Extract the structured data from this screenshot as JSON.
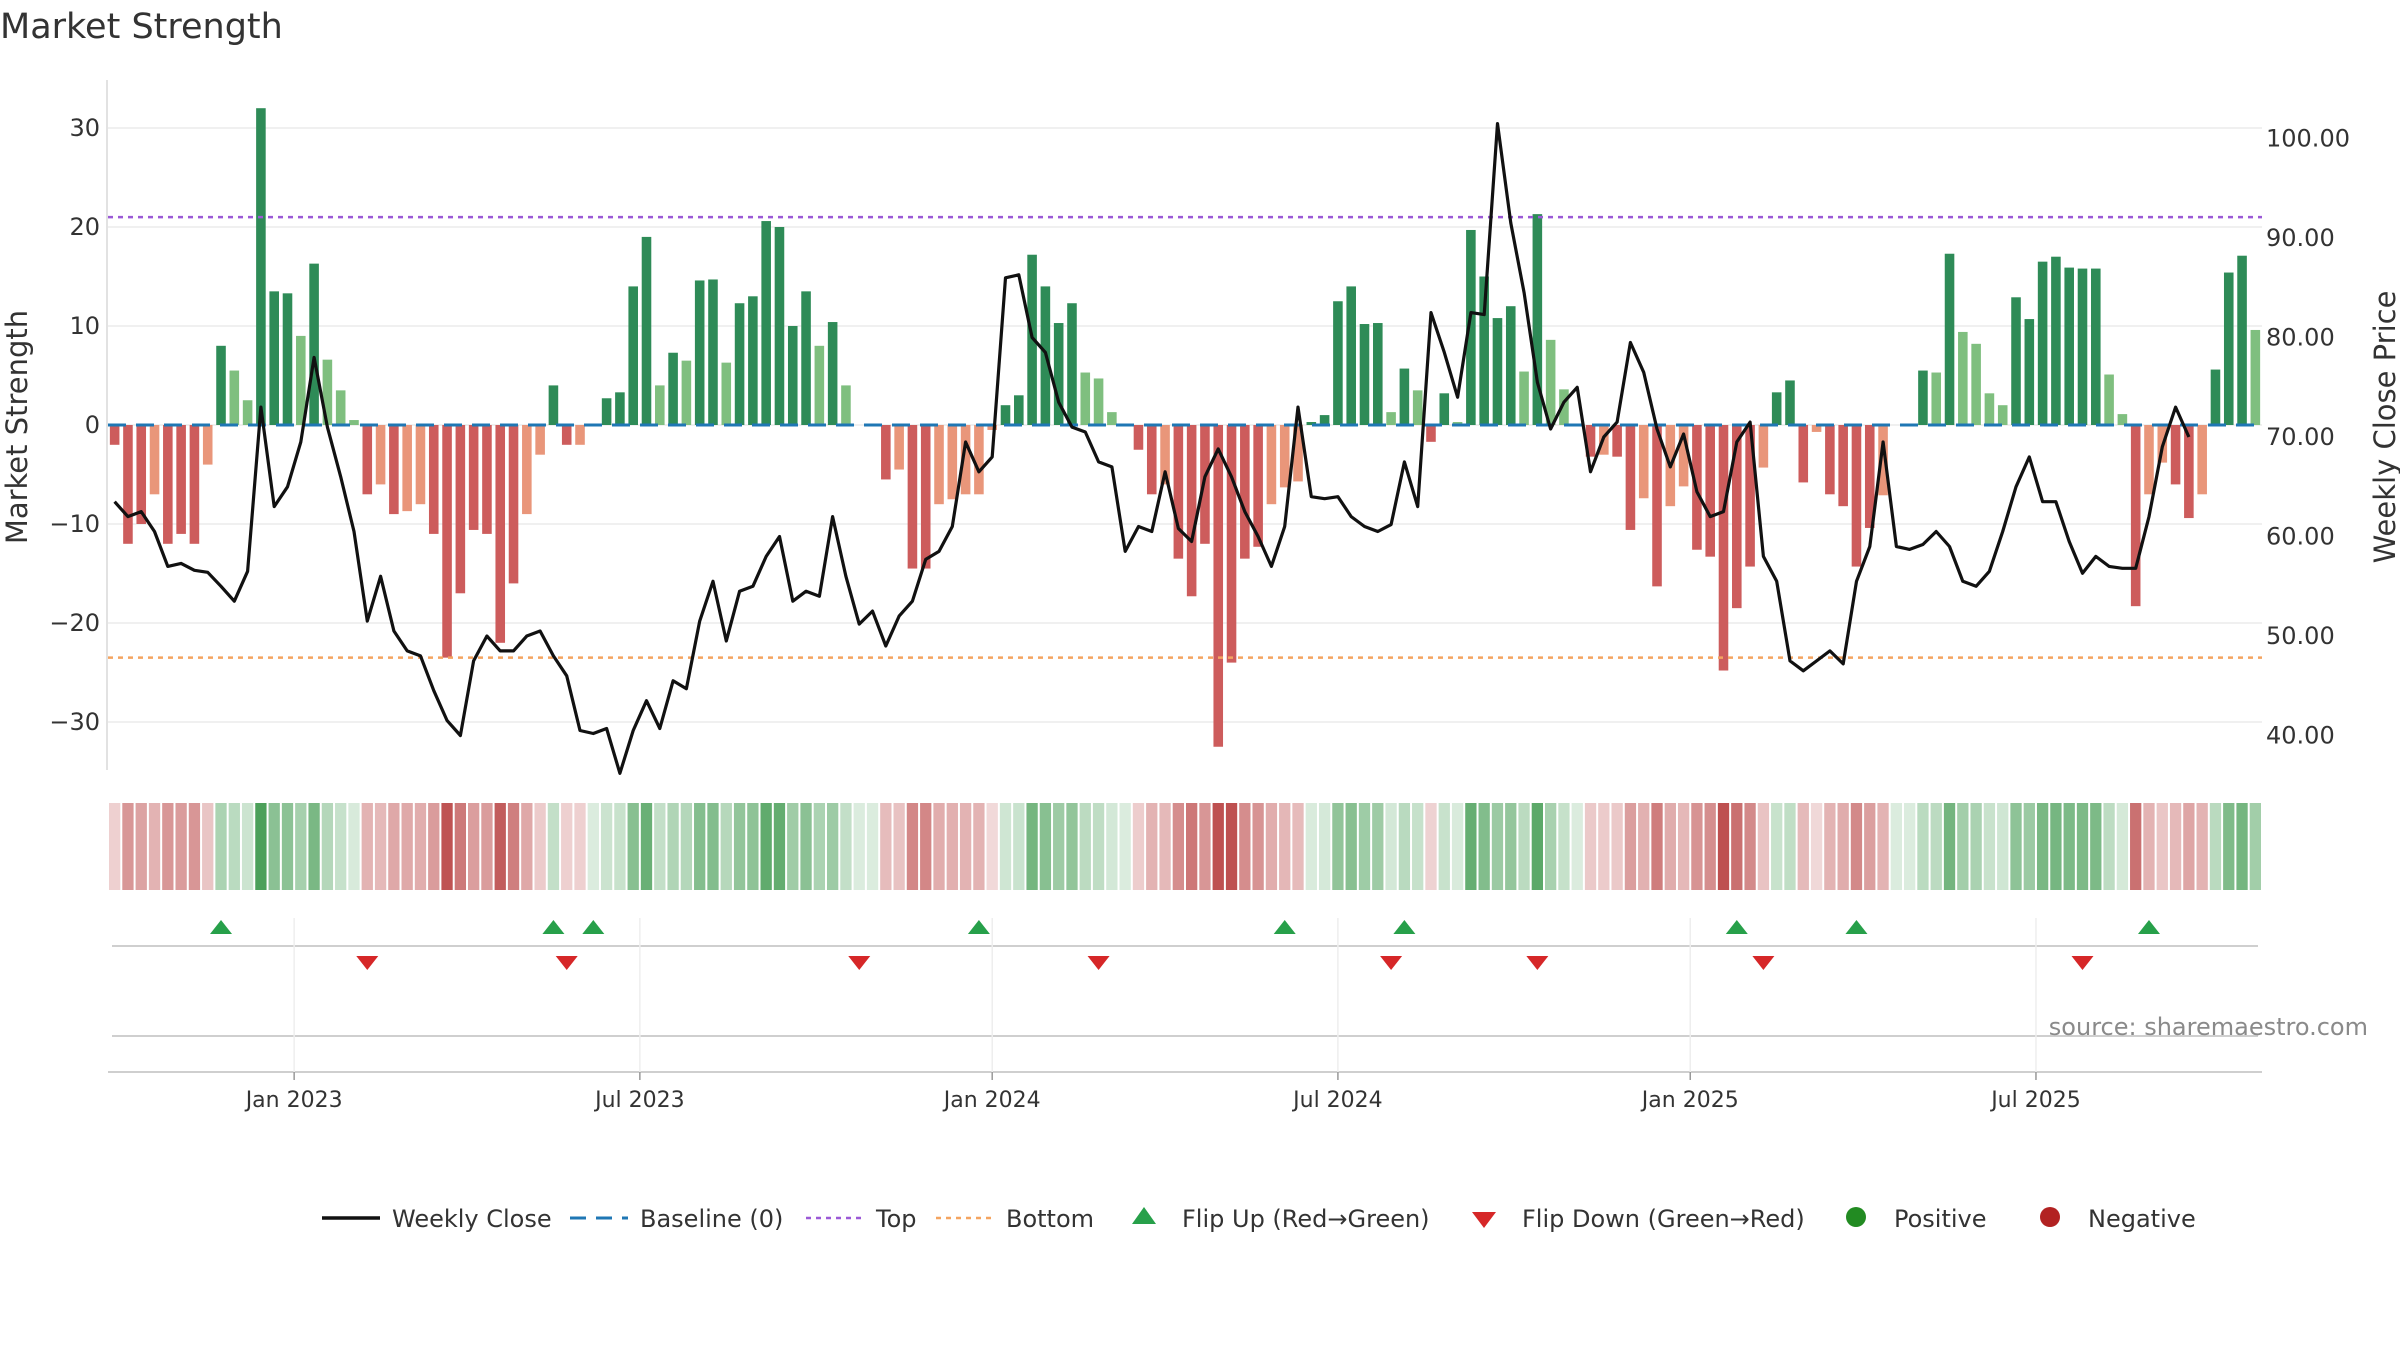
{
  "chart_data": {
    "type": "bar",
    "title": "Market Strength",
    "ylabel": "Market Strength",
    "y2label": "Weekly Close Price",
    "ylim": [
      -35,
      35
    ],
    "y2lim": [
      35,
      105
    ],
    "y_ticks": [
      30,
      20,
      10,
      0,
      -10,
      -20,
      -30
    ],
    "y_tick_labels": [
      "30",
      "20",
      "10",
      "0",
      "−10",
      "−20",
      "−30"
    ],
    "y2_ticks": [
      100,
      90,
      80,
      70,
      60,
      50,
      40
    ],
    "y2_tick_labels": [
      "100.00",
      "90.00",
      "80.00",
      "70.00",
      "60.00",
      "50.00",
      "40.00"
    ],
    "x_ticks": [
      {
        "label": "Jan 2023",
        "index": 14
      },
      {
        "label": "Jul 2023",
        "index": 40
      },
      {
        "label": "Jan 2024",
        "index": 66.5
      },
      {
        "label": "Jul 2024",
        "index": 92.5
      },
      {
        "label": "Jan 2025",
        "index": 119
      },
      {
        "label": "Jul 2025",
        "index": 145
      }
    ],
    "top_line": 21,
    "bottom_line": -23.5,
    "grid": true,
    "legend_position": "bottom",
    "colors": {
      "strong_green": "#2e8b57",
      "light_green": "#7fbf7f",
      "strong_red": "#cd5c5c",
      "light_red": "#e9967a",
      "close_line": "#111111",
      "baseline": "#1f77b4",
      "top": "#9b59d6",
      "bottom": "#f4a460",
      "flip_up": "#27a04a",
      "flip_down": "#d62728",
      "positive": "#228b22",
      "negative": "#b22222"
    },
    "strength": [
      -2,
      -12,
      -10,
      -7,
      -12,
      -11,
      -12,
      -4,
      8,
      5.5,
      2.5,
      32,
      13.5,
      13.3,
      9,
      16.3,
      6.6,
      3.5,
      0.5,
      -7,
      -6,
      -9,
      -8.7,
      -8,
      -11,
      -23.5,
      -17,
      -10.6,
      -11,
      -22,
      -16,
      -9,
      -3,
      4,
      -2,
      -2,
      0,
      2.7,
      3.3,
      14,
      19,
      4,
      7.3,
      6.5,
      14.6,
      14.7,
      6.3,
      12.3,
      13,
      20.6,
      20,
      10,
      13.5,
      8,
      10.4,
      4,
      0,
      0,
      -5.5,
      -4.5,
      -14.5,
      -14.5,
      -8,
      -7.5,
      -7,
      -7,
      -0.5,
      2,
      3,
      17.2,
      14,
      10.3,
      12.3,
      5.3,
      4.7,
      1.3,
      0,
      -2.5,
      -7,
      -6,
      -13.5,
      -17.3,
      -12,
      -32.5,
      -24,
      -13.5,
      -12.3,
      -8,
      -6.3,
      -5.7,
      0.3,
      1,
      12.5,
      14,
      10.2,
      10.3,
      1.3,
      5.7,
      3.5,
      -1.7,
      3.2,
      0.3,
      19.7,
      15,
      10.8,
      12,
      5.4,
      21.3,
      8.6,
      3.6,
      0,
      -3.2,
      -3,
      -3.2,
      -10.6,
      -7.4,
      -16.3,
      -8.2,
      -6.2,
      -12.6,
      -13.3,
      -24.8,
      -18.5,
      -14.3,
      -4.3,
      3.3,
      4.5,
      -5.8,
      -0.7,
      -7,
      -8.2,
      -14.3,
      -10.4,
      -7.1,
      0,
      0,
      5.5,
      5.3,
      17.3,
      9.4,
      8.2,
      3.2,
      2,
      12.9,
      10.7,
      16.5,
      17,
      15.9,
      15.8,
      15.8,
      5.1,
      1.1,
      -18.3,
      -7,
      -3.8,
      -6,
      -9.4,
      -7,
      5.6,
      15.4,
      17.1,
      9.6
    ],
    "weekly_close": [
      63.5,
      62,
      62.5,
      60.5,
      57,
      57.3,
      56.6,
      56.4,
      55,
      53.5,
      56.5,
      73,
      63,
      65,
      69.5,
      78,
      71,
      66,
      60.5,
      51.5,
      56,
      50.5,
      48.5,
      48,
      44.5,
      41.5,
      40,
      47.5,
      50,
      48.5,
      48.5,
      50,
      50.5,
      48,
      46,
      40.5,
      40.2,
      40.7,
      36.2,
      40.5,
      43.5,
      40.7,
      45.5,
      44.7,
      51.5,
      55.5,
      49.5,
      54.5,
      55,
      58,
      60,
      53.5,
      54.5,
      54,
      62,
      56,
      51.2,
      52.5,
      49,
      52,
      53.5,
      57.7,
      58.5,
      61,
      69.5,
      66.5,
      68,
      86,
      86.3,
      80,
      78.5,
      73.5,
      71,
      70.5,
      67.5,
      67,
      58.5,
      61,
      60.5,
      66.5,
      60.8,
      59.5,
      66,
      68.8,
      66,
      62.5,
      60,
      57,
      61,
      73,
      64,
      63.8,
      64,
      62,
      61,
      60.5,
      61.2,
      67.5,
      63,
      82.5,
      78.5,
      74,
      82.5,
      82.3,
      101.5,
      91.5,
      84.5,
      75.5,
      70.8,
      73.5,
      75,
      66.5,
      70,
      71.5,
      79.5,
      76.5,
      70.8,
      67,
      70.3,
      64.5,
      62,
      62.5,
      69.5,
      71.5,
      58,
      55.5,
      47.5,
      46.5,
      47.5,
      48.5,
      47.2,
      55.5,
      59,
      69.5,
      59,
      58.7,
      59.2,
      60.5,
      59,
      55.5,
      55,
      56.5,
      60.5,
      65,
      68,
      63.5,
      63.5,
      59.5,
      56.3,
      58,
      57,
      56.8,
      56.8,
      62,
      69,
      73,
      70
    ],
    "flip_up": [
      8,
      33,
      36,
      65,
      88,
      97,
      122,
      131,
      153
    ],
    "flip_down": [
      19,
      34,
      56,
      74,
      96,
      107,
      124,
      148
    ],
    "legend": [
      {
        "label": "Weekly Close",
        "style": "line"
      },
      {
        "label": "Baseline (0)",
        "style": "dash"
      },
      {
        "label": "Top",
        "style": "dot"
      },
      {
        "label": "Bottom",
        "style": "dot-orange"
      },
      {
        "label": "Flip Up (Red→Green)",
        "style": "triangle-up"
      },
      {
        "label": "Flip Down (Green→Red)",
        "style": "triangle-down"
      },
      {
        "label": "Positive",
        "style": "circle-green"
      },
      {
        "label": "Negative",
        "style": "circle-red"
      }
    ],
    "source": "source: sharemaestro.com"
  }
}
